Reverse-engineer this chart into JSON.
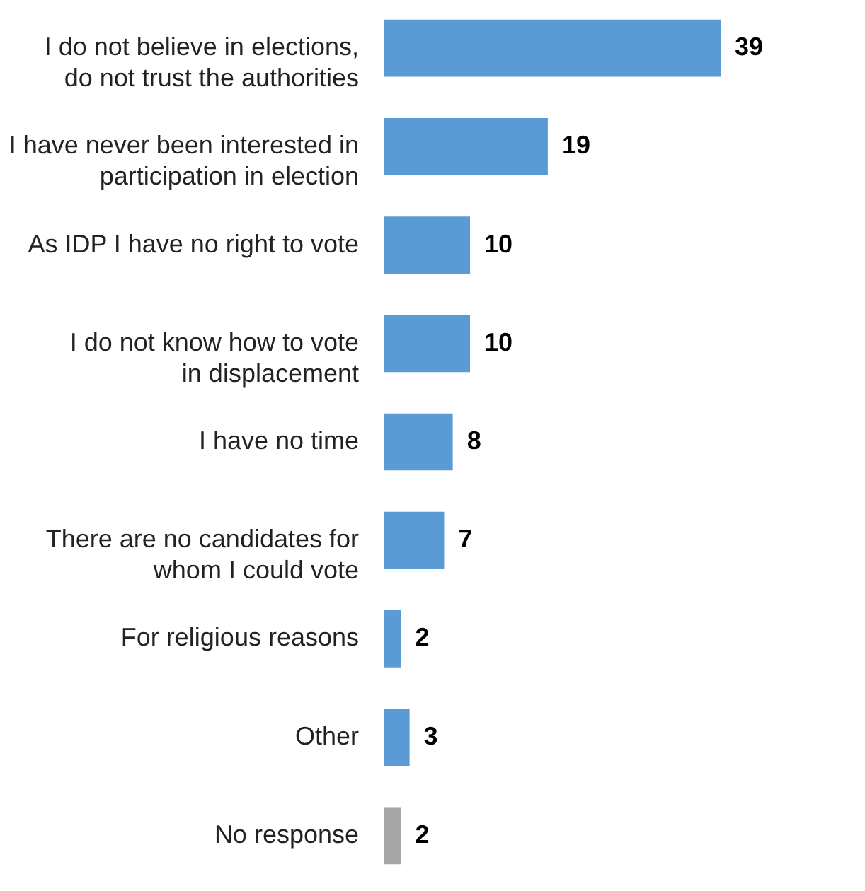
{
  "chart_data": {
    "type": "bar",
    "orientation": "horizontal",
    "data_labels": true,
    "categories": [
      "I do not believe in elections,\ndo not trust the authorities",
      "I have never been interested in\nparticipation in election",
      "As IDP I have no right to vote",
      "I do not know how to vote\nin displacement",
      "I have no time",
      "There are no candidates for\nwhom I could vote",
      "For religious reasons",
      "Other",
      "No response"
    ],
    "values": [
      39,
      19,
      10,
      10,
      8,
      7,
      2,
      3,
      2
    ],
    "colors": [
      "#5b9bd5",
      "#5b9bd5",
      "#5b9bd5",
      "#5b9bd5",
      "#5b9bd5",
      "#5b9bd5",
      "#5b9bd5",
      "#5b9bd5",
      "#a5a5a5"
    ]
  }
}
